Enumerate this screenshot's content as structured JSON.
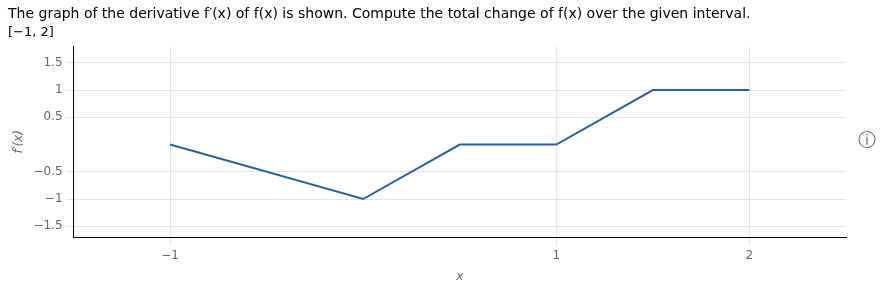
{
  "chart_data": {
    "type": "line",
    "title": "The graph of the derivative f′(x) of f(x) is shown. Compute the total change of f(x) over the given interval.",
    "subtitle": "[−1, 2]",
    "x_label": "x",
    "y_label": "f′(x)",
    "annotations": [
      "ⓘ"
    ],
    "x": [
      -1,
      0,
      0.5,
      1,
      1.5,
      2
    ],
    "values": [
      0,
      -1,
      0,
      0,
      1,
      1
    ],
    "color": "#2c5f9e",
    "xlim": [
      -1.5,
      2.5
    ],
    "ylim": [
      -1.7,
      1.8
    ],
    "xticks": [
      {
        "value": -1,
        "label": "−1"
      },
      1,
      2
    ],
    "yticks": [
      {
        "value": -1.5,
        "label": "−1.5"
      },
      {
        "value": -1,
        "label": "−1"
      },
      {
        "value": -0.5,
        "label": "−0.5"
      },
      0.5,
      1,
      1.5
    ],
    "grid": true
  }
}
